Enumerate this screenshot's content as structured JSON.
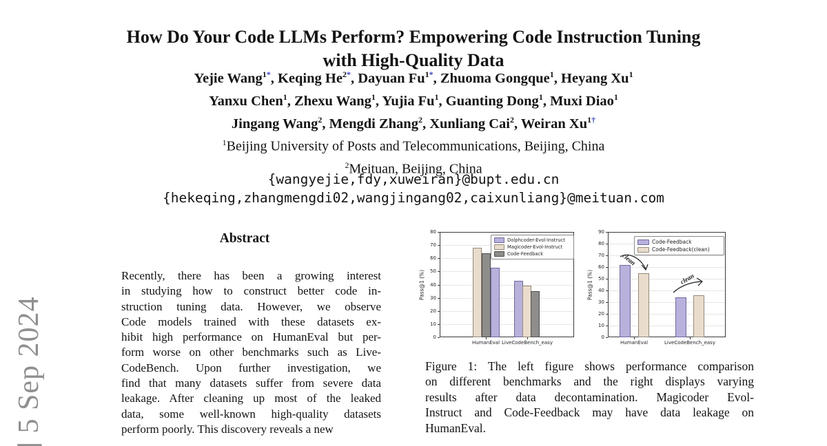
{
  "arxiv_banner": {
    "text": "] 5 Sep 2024",
    "color": "#8f8f8f"
  },
  "title": {
    "line1": "How Do Your Code LLMs Perform? Empowering Code Instruction Tuning",
    "line2": "with High-Quality Data"
  },
  "authors": {
    "mark_color": "#3b45c4",
    "lines": [
      [
        {
          "name": "Yejie Wang",
          "sup": "1",
          "mark": "*"
        },
        {
          "name": "Keqing He",
          "sup": "2",
          "mark": "*"
        },
        {
          "name": "Dayuan Fu",
          "sup": "1",
          "mark": "*"
        },
        {
          "name": "Zhuoma Gongque",
          "sup": "1",
          "mark": ""
        },
        {
          "name": "Heyang Xu",
          "sup": "1",
          "mark": ""
        }
      ],
      [
        {
          "name": "Yanxu Chen",
          "sup": "1",
          "mark": ""
        },
        {
          "name": "Zhexu Wang",
          "sup": "1",
          "mark": ""
        },
        {
          "name": "Yujia Fu",
          "sup": "1",
          "mark": ""
        },
        {
          "name": "Guanting Dong",
          "sup": "1",
          "mark": ""
        },
        {
          "name": "Muxi Diao",
          "sup": "1",
          "mark": ""
        }
      ],
      [
        {
          "name": "Jingang Wang",
          "sup": "2",
          "mark": ""
        },
        {
          "name": "Mengdi Zhang",
          "sup": "2",
          "mark": ""
        },
        {
          "name": "Xunliang Cai",
          "sup": "2",
          "mark": ""
        },
        {
          "name": "Weiran Xu",
          "sup": "1",
          "mark": "†"
        }
      ]
    ]
  },
  "affiliations": [
    {
      "sup": "1",
      "text": "Beijing University of Posts and Telecommunications, Beijing, China"
    },
    {
      "sup": "2",
      "text": "Meituan, Beijing, China"
    }
  ],
  "emails": [
    "{wangyejie,fdy,xuweiran}@bupt.edu.cn",
    "{hekeqing,zhangmengdi02,wangjingang02,caixunliang}@meituan.com"
  ],
  "abstract": {
    "heading": "Abstract",
    "lines": [
      "Recently, there has been a growing interest",
      "in studying how to construct better code in-",
      "struction tuning data. However, we observe",
      "Code models trained with these datasets ex-",
      "hibit high performance on HumanEval but per-",
      "form worse on other benchmarks such as Live-",
      "CodeBench. Upon further investigation, we",
      "find that many datasets suffer from severe data",
      "leakage. After cleaning up most of the leaked",
      "data, some well-known high-quality datasets",
      "perform poorly. This discovery reveals a new"
    ]
  },
  "figure_caption": {
    "lines": [
      "Figure 1: The left figure shows performance comparison",
      "on different benchmarks and the right displays varying",
      "results after data decontamination. Magicoder Evol-",
      "Instruct and Code-Feedback may have data leakage on",
      "HumanEval."
    ]
  },
  "chart_data": [
    {
      "type": "bar",
      "title": "",
      "ylabel": "Pass@1 (%)",
      "xlabel": "",
      "ylim": [
        0,
        80
      ],
      "yticks": [
        0,
        10,
        20,
        30,
        40,
        50,
        60,
        70,
        80
      ],
      "grid": true,
      "legend_position": "upper right",
      "categories": [
        "HumanEval",
        "LiveCodeBench_easy"
      ],
      "legend": [
        "Dolphcoder-Evol-Instruct",
        "Magicoder-Evol-Instruct",
        "Code-Feedback"
      ],
      "series_colors": {
        "Dolphcoder-Evol-Instruct": {
          "fill": "#b7b1dc",
          "border": "#6f6a9e"
        },
        "Magicoder-Evol-Instruct": {
          "fill": "#eadccc",
          "border": "#94897a"
        },
        "Code-Feedback": {
          "fill": "#8f8d8b",
          "border": "#4d4d4d"
        }
      },
      "groups": [
        {
          "category": "HumanEval",
          "bars": [
            {
              "series": "Magicoder-Evol-Instruct",
              "value": 68
            },
            {
              "series": "Code-Feedback",
              "value": 64
            },
            {
              "series": "Dolphcoder-Evol-Instruct",
              "value": 53
            }
          ]
        },
        {
          "category": "LiveCodeBench_easy",
          "bars": [
            {
              "series": "Dolphcoder-Evol-Instruct",
              "value": 43
            },
            {
              "series": "Magicoder-Evol-Instruct",
              "value": 39
            },
            {
              "series": "Code-Feedback",
              "value": 35
            }
          ]
        }
      ]
    },
    {
      "type": "bar",
      "title": "",
      "ylabel": "Pass@1 (%)",
      "xlabel": "",
      "ylim": [
        0,
        90
      ],
      "yticks": [
        0,
        10,
        20,
        30,
        40,
        50,
        60,
        70,
        80,
        90
      ],
      "grid": true,
      "legend_position": "upper center",
      "categories": [
        "HumanEval",
        "LiveCodeBench_easy"
      ],
      "legend": [
        "Code-Feedback",
        "Code-Feedback(clean)"
      ],
      "series_colors": {
        "Code-Feedback": {
          "fill": "#b7b1dc",
          "border": "#6f6a9e"
        },
        "Code-Feedback(clean)": {
          "fill": "#eadccc",
          "border": "#94897a"
        }
      },
      "groups": [
        {
          "category": "HumanEval",
          "bars": [
            {
              "series": "Code-Feedback",
              "value": 62
            },
            {
              "series": "Code-Feedback(clean)",
              "value": 55
            }
          ]
        },
        {
          "category": "LiveCodeBench_easy",
          "bars": [
            {
              "series": "Code-Feedback",
              "value": 34
            },
            {
              "series": "Code-Feedback(clean)",
              "value": 36
            }
          ]
        }
      ],
      "annotations": [
        {
          "text": "clean",
          "direction": "down"
        },
        {
          "text": "clean",
          "direction": "up"
        }
      ]
    }
  ]
}
